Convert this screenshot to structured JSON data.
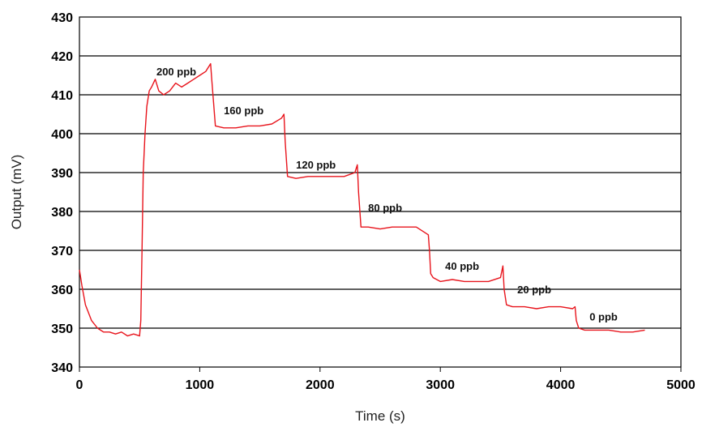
{
  "chart_data": {
    "type": "line",
    "title": "",
    "xlabel": "Time (s)",
    "ylabel": "Output (mV)",
    "xlim": [
      0,
      5000
    ],
    "ylim": [
      340,
      430
    ],
    "x_ticks": [
      "0",
      "1000",
      "2000",
      "3000",
      "4000",
      "5000"
    ],
    "y_ticks": [
      "340",
      "350",
      "360",
      "370",
      "380",
      "390",
      "400",
      "410",
      "420",
      "430"
    ],
    "grid": "horizontal",
    "line_color": "#e8141c",
    "series": [
      {
        "x": [
          0,
          20,
          50,
          100,
          150,
          200,
          250,
          300,
          350,
          400,
          450,
          500,
          510,
          520,
          530,
          545,
          560,
          580,
          600,
          630,
          660,
          700,
          750,
          800,
          850,
          900,
          950,
          1000,
          1050,
          1090,
          1100,
          1110,
          1130,
          1200,
          1300,
          1400,
          1500,
          1600,
          1680,
          1700,
          1710,
          1730,
          1800,
          1900,
          2000,
          2100,
          2200,
          2290,
          2310,
          2320,
          2340,
          2400,
          2500,
          2600,
          2700,
          2800,
          2900,
          2910,
          2920,
          2940,
          3000,
          3100,
          3200,
          3300,
          3400,
          3500,
          3520,
          3530,
          3550,
          3600,
          3700,
          3800,
          3900,
          4000,
          4100,
          4120,
          4130,
          4150,
          4200,
          4300,
          4400,
          4500,
          4600,
          4700
        ],
        "values": [
          365,
          361,
          356,
          352,
          350,
          349,
          349,
          348.5,
          349,
          348,
          348.5,
          348,
          352,
          370,
          390,
          400,
          407,
          411,
          412,
          414,
          411,
          410,
          411,
          413,
          412,
          413,
          414,
          415,
          416,
          418,
          414,
          410,
          402,
          401.5,
          401.5,
          402,
          402,
          402.5,
          404,
          405,
          398,
          389,
          388.5,
          389,
          389,
          389,
          389,
          390,
          392,
          385,
          376,
          376,
          375.5,
          376,
          376,
          376,
          374,
          370,
          364,
          363,
          362,
          362.5,
          362,
          362,
          362,
          363,
          366,
          360,
          356,
          355.5,
          355.5,
          355,
          355.5,
          355.5,
          355,
          355.5,
          352,
          350,
          349.5,
          349.5,
          349.5,
          349,
          349,
          349.5
        ]
      }
    ],
    "annotations": [
      {
        "text": "200 ppb",
        "x": 640,
        "y": 415
      },
      {
        "text": "160 ppb",
        "x": 1200,
        "y": 405
      },
      {
        "text": "120 ppb",
        "x": 1800,
        "y": 391
      },
      {
        "text": "80 ppb",
        "x": 2400,
        "y": 380
      },
      {
        "text": "40 ppb",
        "x": 3040,
        "y": 365
      },
      {
        "text": "20 ppb",
        "x": 3640,
        "y": 359
      },
      {
        "text": "0 ppb",
        "x": 4240,
        "y": 352
      }
    ]
  }
}
